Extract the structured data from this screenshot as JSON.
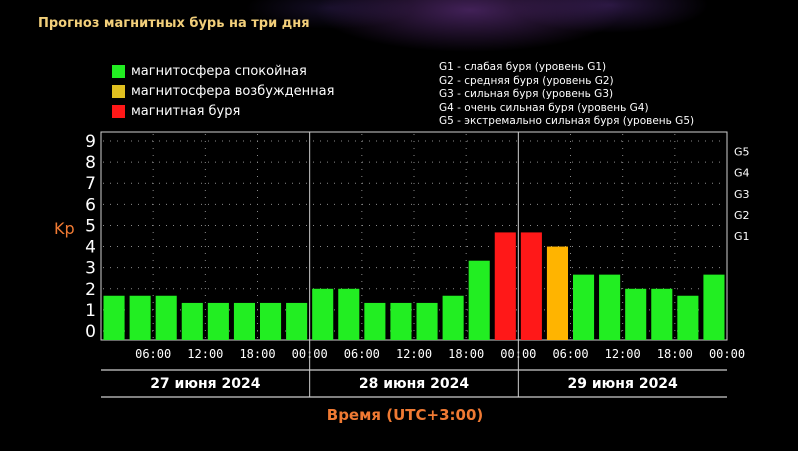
{
  "title": "Прогноз магнитных бурь на три дня",
  "legend": [
    {
      "label": "магнитосфера спокойная",
      "color": "#22ee22"
    },
    {
      "label": "магнитосфера возбужденная",
      "color": "#e0c020"
    },
    {
      "label": "магнитная буря",
      "color": "#ff1818"
    }
  ],
  "storm_levels": [
    "G1 - слабая буря (уровень G1)",
    "G2 - средняя буря (уровень G2)",
    "G3 - сильная буря (уровень G3)",
    "G4 - очень сильная буря (уровень G4)",
    "G5 - экстремально сильная буря (уровень G5)"
  ],
  "chart_data": {
    "type": "bar",
    "ylabel": "Kp",
    "xlabel": "Время (UTC+3:00)",
    "ylim": [
      0,
      9
    ],
    "yticks": [
      "0",
      "1",
      "2",
      "3",
      "4",
      "5",
      "6",
      "7",
      "8",
      "9"
    ],
    "right_axis_labels": [
      {
        "label": "G1",
        "kp": 4.5
      },
      {
        "label": "G2",
        "kp": 5.5
      },
      {
        "label": "G3",
        "kp": 6.5
      },
      {
        "label": "G4",
        "kp": 7.5
      },
      {
        "label": "G5",
        "kp": 8.5
      }
    ],
    "xtick_labels": [
      "06:00",
      "12:00",
      "18:00",
      "00:00",
      "06:00",
      "12:00",
      "18:00",
      "00:00",
      "06:00",
      "12:00",
      "18:00",
      "00:00"
    ],
    "days": [
      "27 июня 2024",
      "28 июня 2024",
      "29 июня 2024"
    ],
    "values": [
      1.67,
      1.67,
      1.67,
      1.33,
      1.33,
      1.33,
      1.33,
      1.33,
      2.0,
      2.0,
      1.33,
      1.33,
      1.33,
      1.67,
      3.33,
      4.67,
      4.67,
      4.0,
      2.67,
      2.67,
      2.0,
      2.0,
      1.67,
      2.67
    ],
    "colors": {
      "quiet": "#22ee22",
      "active": "#ffb400",
      "storm": "#ff1818"
    },
    "grid": true
  }
}
